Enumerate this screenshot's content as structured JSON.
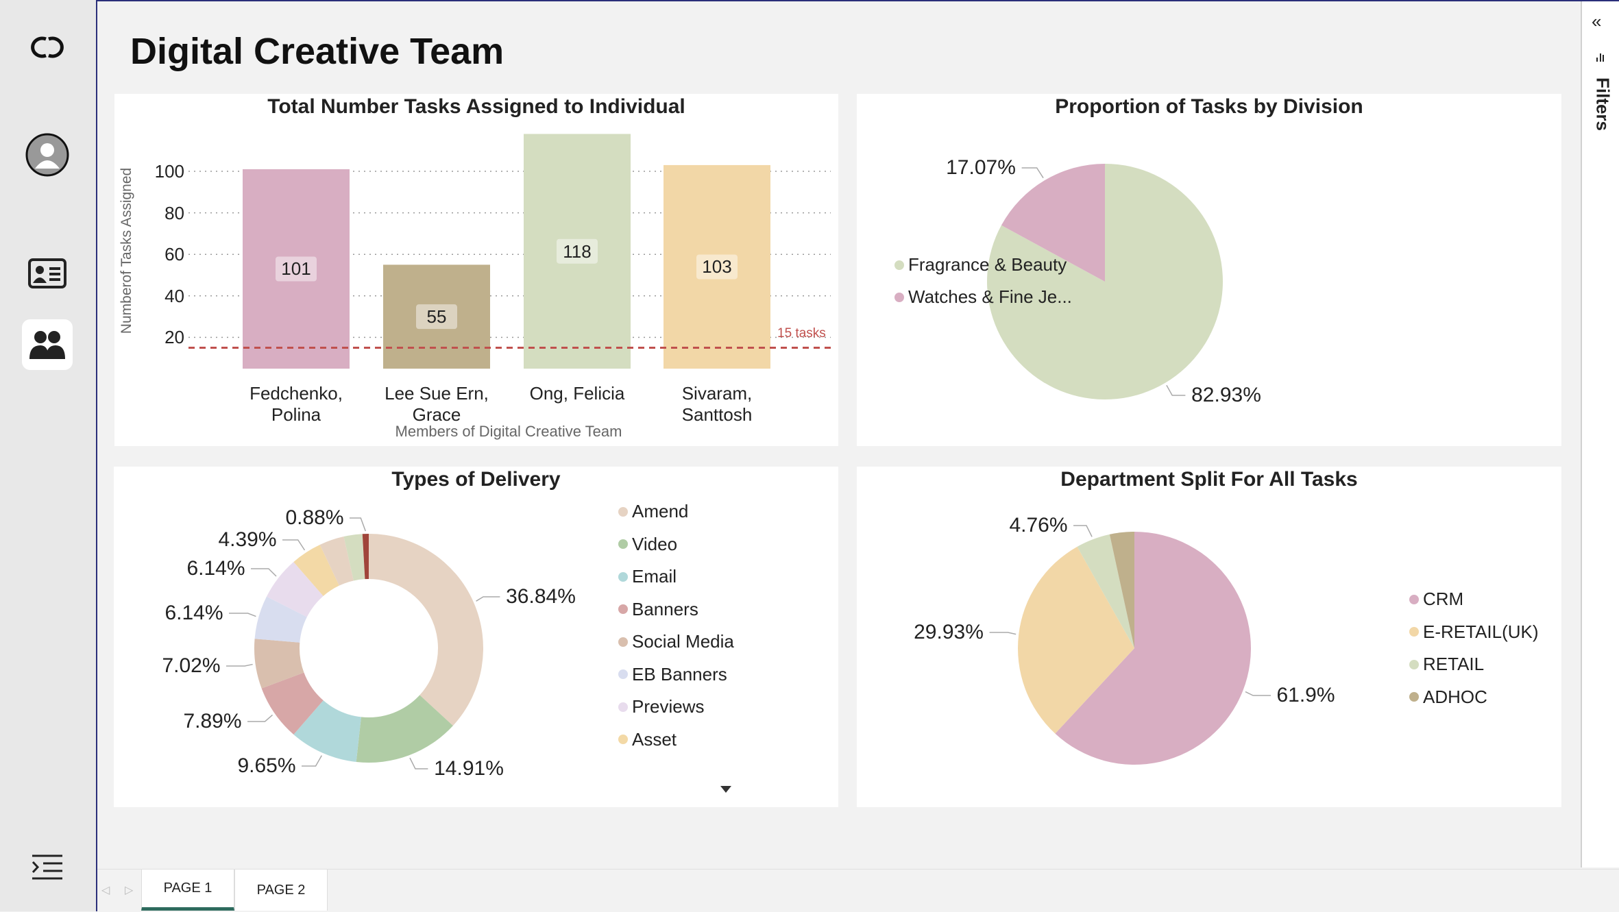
{
  "page": {
    "title": "Digital Creative Team"
  },
  "sidebar": {
    "icons": [
      "brand-logo-icon",
      "profile-avatar-icon",
      "contact-card-icon",
      "people-icon",
      "collapse-menu-icon"
    ]
  },
  "filters_pane": {
    "label": "Filters",
    "collapse_icon": "«"
  },
  "tabs": [
    {
      "label": "PAGE 1",
      "active": true
    },
    {
      "label": "PAGE 2",
      "active": false
    }
  ],
  "chart_data": [
    {
      "type": "bar",
      "title": "Total Number Tasks Assigned to Individual",
      "xlabel": "Members of Digital Creative Team",
      "ylabel": "Numberof Tasks Assigned",
      "categories": [
        "Fedchenko, Polina",
        "Lee Sue Ern, Grace",
        "Ong, Felicia",
        "Sivaram, Santtosh"
      ],
      "category_lines": [
        [
          "Fedchenko,",
          "Polina"
        ],
        [
          "Lee Sue Ern,",
          "Grace"
        ],
        [
          "Ong, Felicia"
        ],
        [
          "Sivaram,",
          "Santtosh"
        ]
      ],
      "values": [
        101,
        55,
        118,
        103
      ],
      "value_labels": [
        "101",
        "55",
        "118",
        "103"
      ],
      "colors": [
        "#d8aec2",
        "#bfb08c",
        "#d4ddc0",
        "#f2d7a7"
      ],
      "yticks": [
        20,
        40,
        60,
        80,
        100
      ],
      "ytick_labels": [
        "20",
        "40",
        "60",
        "80",
        "100"
      ],
      "grid": true,
      "reference_line": {
        "value": 15,
        "label": "15 tasks",
        "color": "#c0504d"
      }
    },
    {
      "type": "pie",
      "title": "Proportion of Tasks by Division",
      "series": [
        {
          "name": "Fragrance & Beauty",
          "value": 82.93,
          "label": "82.93%",
          "color": "#d4ddc0"
        },
        {
          "name": "Watches & Fine Je...",
          "value": 17.07,
          "label": "17.07%",
          "color": "#d8aec2"
        }
      ],
      "legend": "right"
    },
    {
      "type": "pie",
      "subtype": "donut",
      "title": "Types of Delivery",
      "series": [
        {
          "name": "Amend",
          "value": 36.84,
          "label": "36.84%",
          "color": "#e6d3c3"
        },
        {
          "name": "Video",
          "value": 14.91,
          "label": "14.91%",
          "color": "#b0cca5"
        },
        {
          "name": "Email",
          "value": 9.65,
          "label": "9.65%",
          "color": "#b0d8da"
        },
        {
          "name": "Banners",
          "value": 7.89,
          "label": "7.89%",
          "color": "#d7a7a7"
        },
        {
          "name": "Social Media",
          "value": 7.02,
          "label": "7.02%",
          "color": "#d9bfae"
        },
        {
          "name": "EB Banners",
          "value": 6.14,
          "label": "6.14%",
          "color": "#d8ddef"
        },
        {
          "name": "Previews",
          "value": 6.14,
          "label": "6.14%",
          "color": "#e8dced"
        },
        {
          "name": "Asset",
          "value": 4.39,
          "label": "4.39%",
          "color": "#f3d9a6"
        },
        {
          "name": "",
          "value": 3.51,
          "label": "",
          "color": "#e6d3c3"
        },
        {
          "name": "",
          "value": 2.63,
          "label": "",
          "color": "#d4ddc0"
        },
        {
          "name": "",
          "value": 0.88,
          "label": "0.88%",
          "color": "#a0453a"
        }
      ],
      "legend": "right",
      "legend_scroll_icon": "scroll-down-arrow-icon"
    },
    {
      "type": "pie",
      "title": "Department Split For All Tasks",
      "series": [
        {
          "name": "CRM",
          "value": 61.9,
          "label": "61.9%",
          "color": "#d8aec2"
        },
        {
          "name": "E-RETAIL(UK)",
          "value": 29.93,
          "label": "29.93%",
          "color": "#f2d7a7"
        },
        {
          "name": "RETAIL",
          "value": 4.76,
          "label": "4.76%",
          "color": "#d4ddc0"
        },
        {
          "name": "ADHOC",
          "value": 3.41,
          "label": "",
          "color": "#bfb08c"
        }
      ],
      "legend": "right"
    }
  ]
}
